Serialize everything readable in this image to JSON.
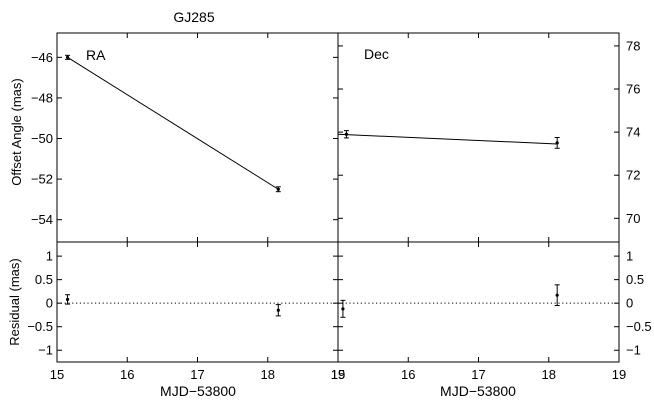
{
  "figure": {
    "title": "GJ285"
  },
  "chart_data": [
    {
      "type": "line",
      "panel": "RA offset",
      "label": "RA",
      "ylabel": "Offset Angle (mas)",
      "xlim": [
        15,
        19
      ],
      "ylim": [
        -55.1,
        -44.8
      ],
      "yticks": [
        -54,
        -52,
        -50,
        -48,
        -46
      ],
      "y_axis_side": "left",
      "points": [
        {
          "x": 15.15,
          "y": -46.0,
          "err": 0.1
        },
        {
          "x": 18.15,
          "y": -52.5,
          "err": 0.12
        }
      ],
      "fit": [
        {
          "x": 15.15,
          "y": -46.0
        },
        {
          "x": 18.15,
          "y": -52.5
        }
      ]
    },
    {
      "type": "line",
      "panel": "Dec offset",
      "label": "Dec",
      "ylabel": "",
      "xlim": [
        15,
        19
      ],
      "ylim": [
        68.9,
        78.6
      ],
      "yticks": [
        70,
        72,
        74,
        76,
        78
      ],
      "y_axis_side": "right",
      "points": [
        {
          "x": 15.12,
          "y": 73.9,
          "err": 0.17
        },
        {
          "x": 18.12,
          "y": 73.5,
          "err": 0.25
        }
      ],
      "fit": [
        {
          "x": 15.0,
          "y": 73.9
        },
        {
          "x": 18.12,
          "y": 73.45
        }
      ]
    },
    {
      "type": "scatter",
      "panel": "RA residual",
      "ylabel": "Residual (mas)",
      "xlabel": "MJD−53800",
      "xlim": [
        15,
        19
      ],
      "xticks": [
        "15",
        "16",
        "17",
        "18",
        "19"
      ],
      "ylim": [
        -1.25,
        1.3
      ],
      "yticks": [
        "−1",
        "−0.5",
        "0",
        "0.5",
        "1"
      ],
      "y_axis_side": "left",
      "zero_line": true,
      "points": [
        {
          "x": 15.15,
          "y": 0.08,
          "err": 0.1
        },
        {
          "x": 18.15,
          "y": -0.15,
          "err": 0.12
        }
      ]
    },
    {
      "type": "scatter",
      "panel": "Dec residual",
      "ylabel": "",
      "xlabel": "MJD−53800",
      "xlim": [
        15,
        19
      ],
      "xticks": [
        "15",
        "16",
        "17",
        "18",
        "19"
      ],
      "ylim": [
        -1.25,
        1.3
      ],
      "yticks": [
        "−1",
        "−0.5",
        "0",
        "0.5",
        "1"
      ],
      "y_axis_side": "right",
      "zero_line": true,
      "points": [
        {
          "x": 15.07,
          "y": -0.12,
          "err": 0.18
        },
        {
          "x": 18.12,
          "y": 0.17,
          "err": 0.22
        }
      ]
    }
  ]
}
